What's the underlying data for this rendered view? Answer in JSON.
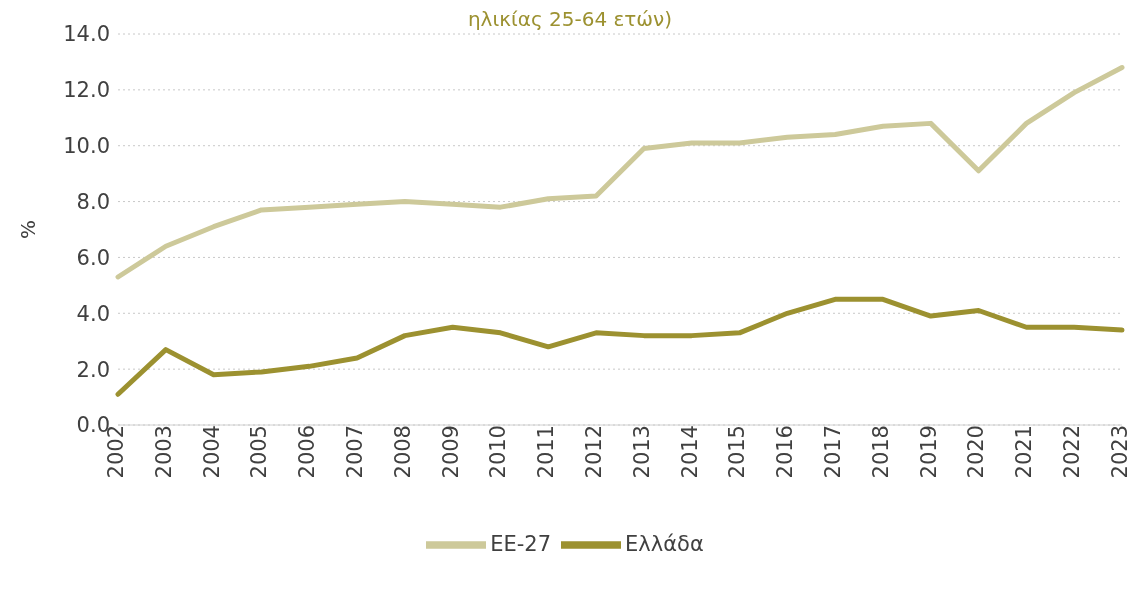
{
  "chart_data": {
    "type": "line",
    "title": "ηλικίας 25-64 ετών)",
    "ylabel": "%",
    "categories": [
      "2002",
      "2003",
      "2004",
      "2005",
      "2006",
      "2007",
      "2008",
      "2009",
      "2010",
      "2011",
      "2012",
      "2013",
      "2014",
      "2015",
      "2016",
      "2017",
      "2018",
      "2019",
      "2020",
      "2021",
      "2022",
      "2023"
    ],
    "series": [
      {
        "name": "Ελλάδα",
        "color": "#9c9130",
        "values": [
          1.1,
          2.7,
          1.8,
          1.9,
          2.1,
          2.4,
          3.2,
          3.5,
          3.3,
          2.8,
          3.3,
          3.2,
          3.2,
          3.3,
          4.0,
          4.5,
          4.5,
          3.9,
          4.1,
          3.5,
          3.5,
          3.4
        ]
      },
      {
        "name": "ΕΕ-27",
        "color": "#cdc99a",
        "values": [
          5.3,
          6.4,
          7.1,
          7.7,
          7.8,
          7.9,
          8.0,
          7.9,
          7.8,
          8.1,
          8.2,
          9.9,
          10.1,
          10.1,
          10.3,
          10.4,
          10.7,
          10.8,
          9.1,
          10.8,
          11.9,
          12.8
        ]
      }
    ],
    "ylim": [
      0,
      14
    ],
    "yticks": [
      {
        "value": 0,
        "label": "0.0"
      },
      {
        "value": 2,
        "label": "2.0"
      },
      {
        "value": 4,
        "label": "4.0"
      },
      {
        "value": 6,
        "label": "6.0"
      },
      {
        "value": 8,
        "label": "8.0"
      },
      {
        "value": 10,
        "label": "10.0"
      },
      {
        "value": 12,
        "label": "12.0"
      },
      {
        "value": 14,
        "label": "14.0"
      }
    ],
    "grid": "y",
    "legend": "bottom",
    "marker": "none",
    "line_style": "solid"
  }
}
